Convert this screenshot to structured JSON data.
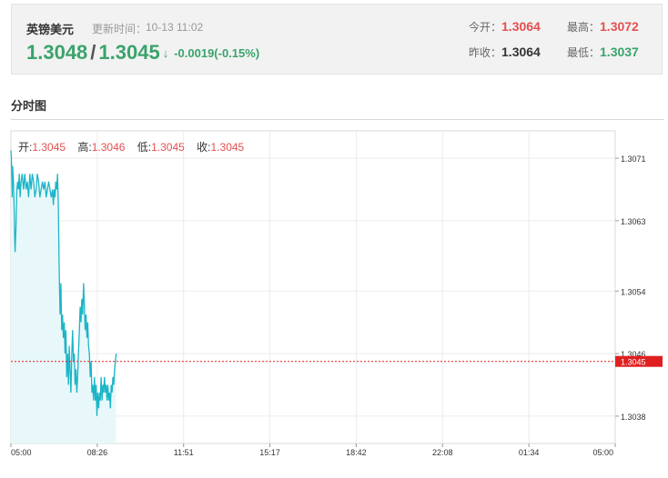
{
  "quote": {
    "name": "英镑美元",
    "update_label": "更新时间：",
    "update_time": "10-13 11:02",
    "bid": "1.3048",
    "slash": "/",
    "ask": "1.3045",
    "arrow": "↓",
    "change": "-0.0019(-0.15%)",
    "open_label": "今开：",
    "open": "1.3064",
    "high_label": "最高：",
    "high": "1.3072",
    "prev_close_label": "昨收：",
    "prev_close": "1.3064",
    "low_label": "最低：",
    "low": "1.3037"
  },
  "section": {
    "title": "分时图"
  },
  "ohlc": {
    "open_label": "开:",
    "open": "1.3045",
    "high_label": "高:",
    "high": "1.3046",
    "low_label": "低:",
    "low": "1.3045",
    "close_label": "收:",
    "close": "1.3045"
  },
  "colors": {
    "line": "#1bb5c8",
    "fill": "#e8f8fa",
    "current": "#e02020",
    "grid": "#ececec"
  },
  "chart_data": {
    "type": "area",
    "ylim": [
      1.30345,
      1.30745
    ],
    "y_ticks": [
      "1.3071",
      "1.3063",
      "1.3054",
      "1.3046",
      "1.3038"
    ],
    "y_tick_values": [
      1.3071,
      1.3063,
      1.3054,
      1.3046,
      1.3038
    ],
    "x_ticks": [
      "05:00",
      "08:26",
      "11:51",
      "15:17",
      "18:42",
      "22:08",
      "01:34",
      "05:00"
    ],
    "x_range_minutes": [
      0,
      1440
    ],
    "current_price": 1.3045,
    "current_label": "1.3045",
    "series": [
      {
        "x": [
          0,
          1,
          2,
          3,
          4,
          6,
          8,
          9,
          10,
          12,
          14,
          16,
          18,
          20,
          22,
          24,
          27,
          30,
          33,
          36,
          39,
          42,
          45,
          48,
          51,
          54,
          57,
          60,
          63,
          66,
          69,
          72,
          75,
          78,
          81,
          84,
          87,
          90,
          93,
          96,
          99,
          101,
          103,
          105,
          107,
          109,
          111,
          113,
          115,
          117,
          119,
          121,
          123,
          125,
          127,
          129,
          131,
          133,
          135,
          137,
          139,
          141,
          143,
          145,
          147,
          149,
          151,
          153,
          155,
          157,
          159,
          161,
          163,
          165,
          167,
          169,
          171,
          173,
          175,
          177,
          179,
          181,
          183,
          185,
          187,
          189,
          191,
          193,
          195,
          197,
          199,
          201,
          203,
          205,
          207,
          209,
          211,
          213,
          215,
          217,
          219,
          221,
          223,
          225,
          227,
          229,
          231,
          233,
          235,
          237,
          239,
          241,
          243,
          245,
          247,
          249,
          251
        ],
        "y": [
          1.3072,
          1.3071,
          1.3069,
          1.3066,
          1.307,
          1.3068,
          1.3064,
          1.3061,
          1.3059,
          1.3062,
          1.3067,
          1.3068,
          1.3067,
          1.3069,
          1.3066,
          1.3068,
          1.3069,
          1.3067,
          1.3069,
          1.3067,
          1.3068,
          1.3066,
          1.3069,
          1.3067,
          1.3069,
          1.3068,
          1.3066,
          1.3067,
          1.3069,
          1.3068,
          1.3066,
          1.3067,
          1.3068,
          1.3067,
          1.3068,
          1.3066,
          1.3067,
          1.3068,
          1.3067,
          1.3066,
          1.3067,
          1.3065,
          1.3067,
          1.3066,
          1.3068,
          1.3067,
          1.3069,
          1.3065,
          1.3057,
          1.3051,
          1.3055,
          1.3049,
          1.3051,
          1.3048,
          1.305,
          1.3046,
          1.3049,
          1.3043,
          1.3046,
          1.3042,
          1.3047,
          1.3044,
          1.3041,
          1.3046,
          1.3049,
          1.3045,
          1.3046,
          1.3042,
          1.3044,
          1.3041,
          1.3043,
          1.3046,
          1.3049,
          1.3052,
          1.305,
          1.3053,
          1.3051,
          1.3055,
          1.3052,
          1.3049,
          1.3051,
          1.3048,
          1.305,
          1.3047,
          1.3046,
          1.3043,
          1.3045,
          1.3041,
          1.3042,
          1.304,
          1.3043,
          1.304,
          1.3042,
          1.3038,
          1.3041,
          1.3039,
          1.3041,
          1.304,
          1.3043,
          1.304,
          1.3042,
          1.3041,
          1.3043,
          1.3041,
          1.3042,
          1.304,
          1.3042,
          1.304,
          1.3041,
          1.3039,
          1.3042,
          1.3041,
          1.3043,
          1.3042,
          1.3044,
          1.3045,
          1.3046
        ]
      }
    ]
  }
}
